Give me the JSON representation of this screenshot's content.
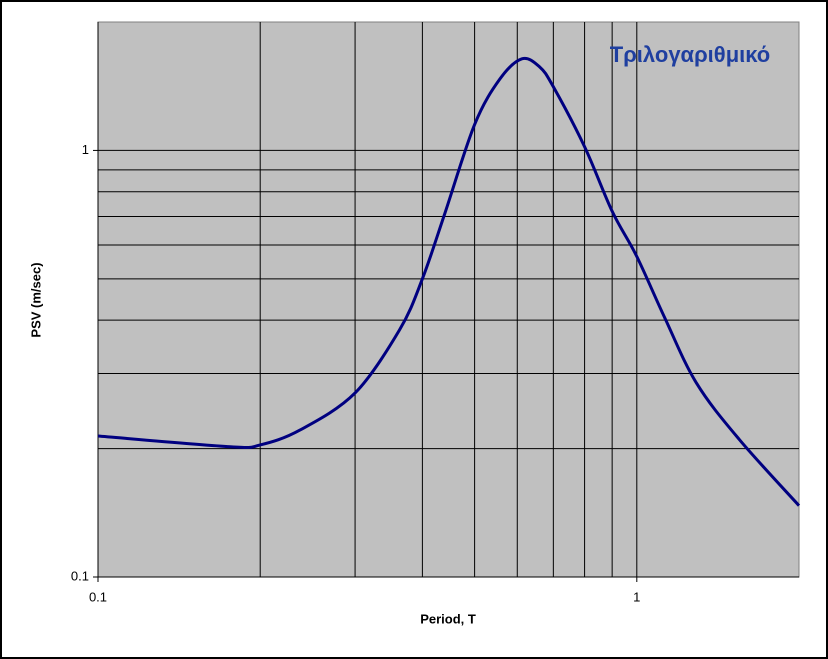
{
  "chart_data": {
    "type": "line",
    "title": "Τριλογαριθμικό",
    "x_label": "Period, T",
    "y_label": "PSV (m/sec)",
    "x_log": true,
    "y_log": true,
    "grid": true,
    "xlim": [
      0.1,
      2
    ],
    "ylim": [
      0.1,
      2
    ],
    "xticks": [
      0.1,
      1
    ],
    "yticks": [
      0.1,
      1
    ],
    "xminor": [
      0.2,
      0.3,
      0.4,
      0.5,
      0.6,
      0.7,
      0.8,
      0.9
    ],
    "yminor": [
      0.2,
      0.3,
      0.4,
      0.5,
      0.6,
      0.7,
      0.8,
      0.9
    ],
    "x": [
      0.1,
      0.176,
      0.2,
      0.237,
      0.3,
      0.363,
      0.4,
      0.44,
      0.5,
      0.557,
      0.612,
      0.66,
      0.7,
      0.8,
      0.9,
      1,
      1.127,
      1.29,
      1.55,
      2
    ],
    "series": [
      {
        "name": "PSV",
        "color": "#000080",
        "values": [
          0.214,
          0.202,
          0.204,
          0.221,
          0.27,
          0.38,
          0.5,
          0.71,
          1.15,
          1.47,
          1.64,
          1.57,
          1.41,
          1.02,
          0.72,
          0.564,
          0.405,
          0.285,
          0.21,
          0.147
        ]
      }
    ]
  }
}
